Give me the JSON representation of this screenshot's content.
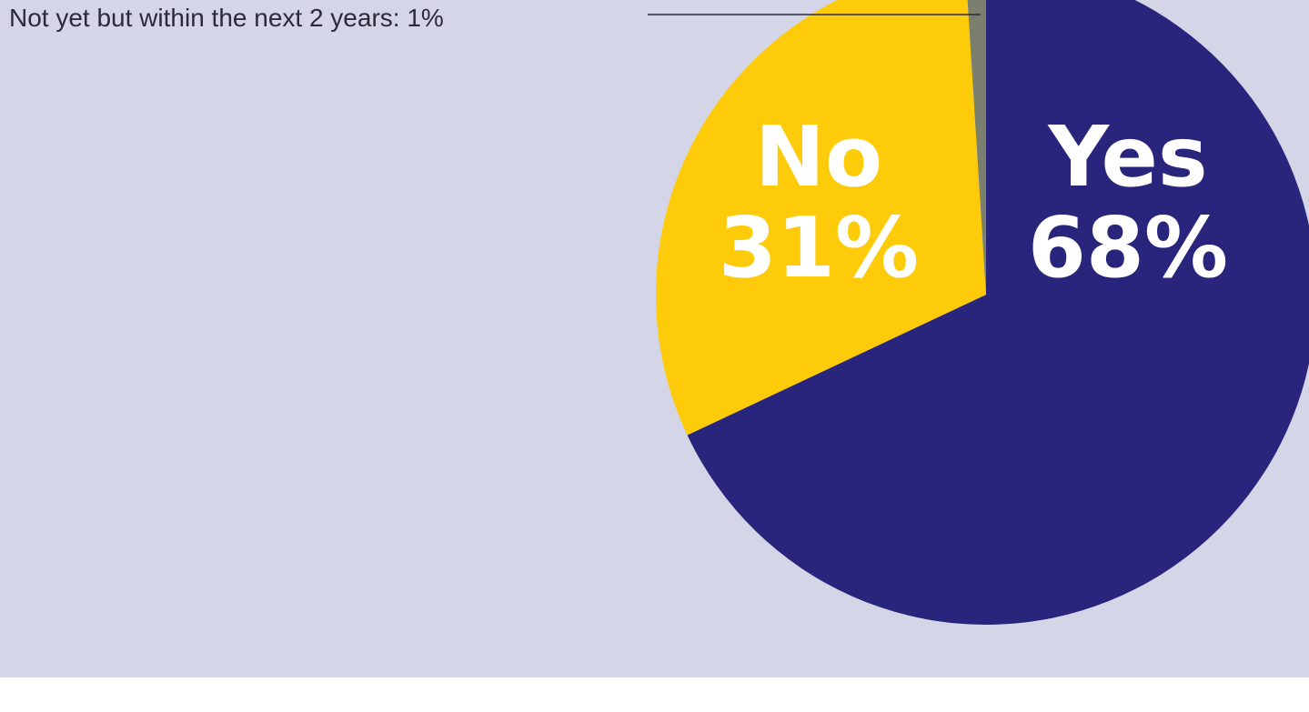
{
  "chart_data": {
    "type": "pie",
    "title": "",
    "slices": [
      {
        "label": "Yes",
        "value": 68,
        "value_label": "68%",
        "color": "#29257c"
      },
      {
        "label": "No",
        "value": 31,
        "value_label": "31%",
        "color": "#fecb0b"
      },
      {
        "label": "Not yet but within the next 2 years",
        "value": 1,
        "value_label": "1%",
        "color": "#7a7f6e"
      }
    ],
    "callout": {
      "text": "Not yet but within the next 2 years: 1%"
    },
    "background_color": "#d5d5e8"
  }
}
